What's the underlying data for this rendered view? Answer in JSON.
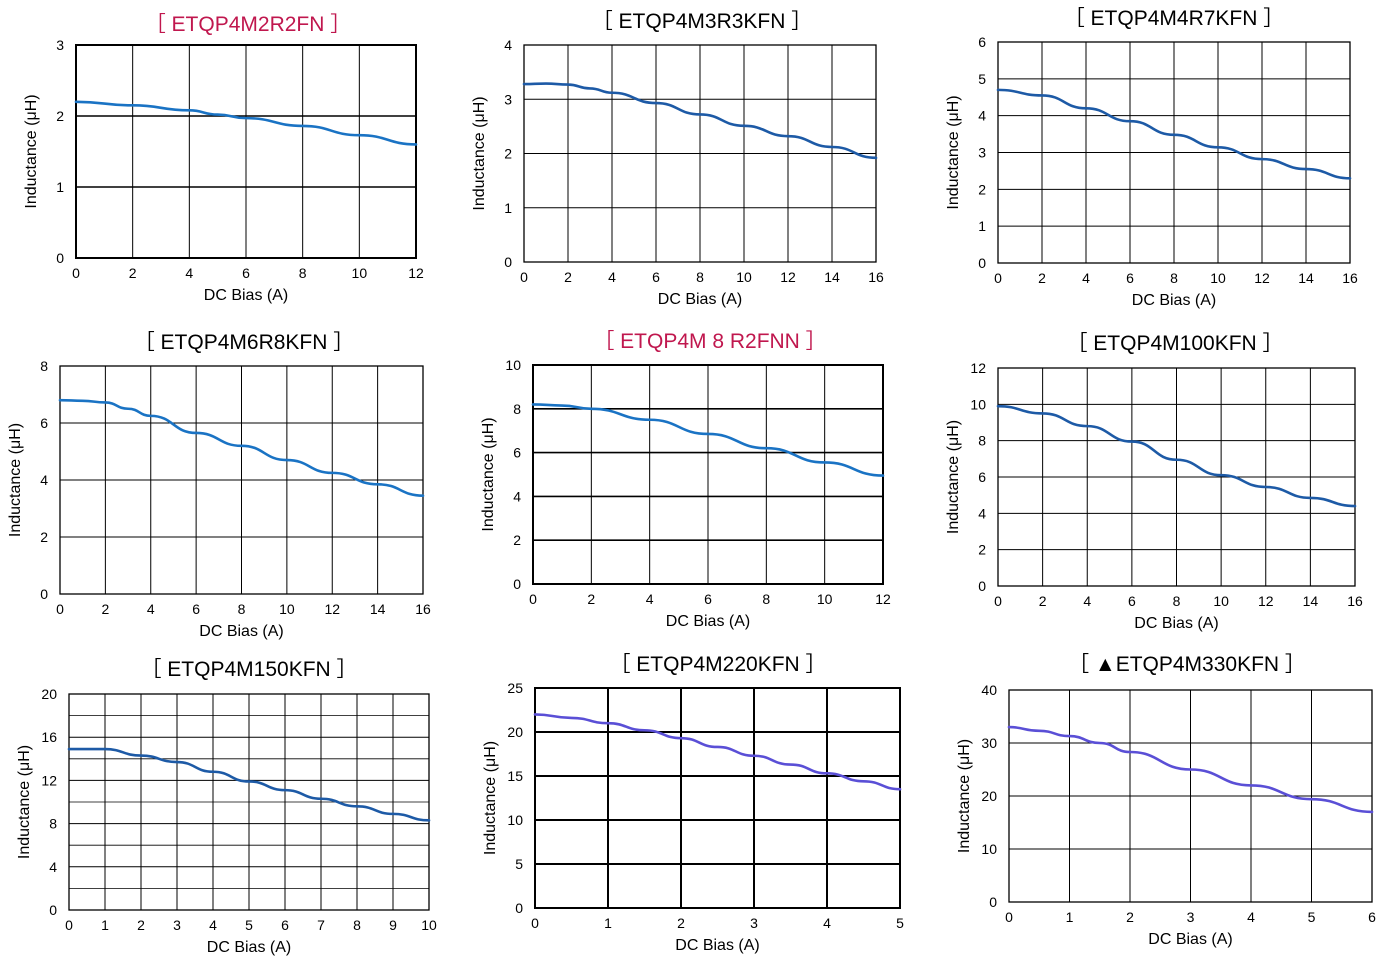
{
  "colors": {
    "title_red": "#c0174e",
    "title_black": "#000000",
    "line_blue": "#1a73c4",
    "line_navy": "#1d5aa6",
    "line_purple": "#5a4fd6"
  },
  "chart_data": [
    {
      "type": "line",
      "title": "［ ETQP4M2R2FN ］",
      "title_color": "title_red",
      "xlabel": "DC Bias (A)",
      "ylabel": "Inductance (μH)",
      "xlim": [
        0,
        12
      ],
      "ylim": [
        0,
        3
      ],
      "xticks": [
        0,
        2,
        4,
        6,
        8,
        10,
        12
      ],
      "yticks": [
        0,
        1,
        2,
        3
      ],
      "grid": "major",
      "line_color": "line_blue",
      "series": [
        {
          "x": [
            0,
            2,
            4,
            5,
            6,
            8,
            10,
            12
          ],
          "values": [
            2.2,
            2.15,
            2.08,
            2.02,
            1.97,
            1.86,
            1.73,
            1.6
          ]
        }
      ]
    },
    {
      "type": "line",
      "title": "［ ETQP4M3R3KFN ］",
      "title_color": "title_black",
      "xlabel": "DC Bias (A)",
      "ylabel": "Inductance (μH)",
      "xlim": [
        0,
        16
      ],
      "ylim": [
        0,
        4
      ],
      "xticks": [
        0,
        2,
        4,
        6,
        8,
        10,
        12,
        14,
        16
      ],
      "yticks": [
        0,
        1,
        2,
        3,
        4
      ],
      "grid": "major",
      "line_color": "line_navy",
      "series": [
        {
          "x": [
            0,
            1,
            2,
            3,
            4,
            6,
            8,
            10,
            12,
            14,
            16
          ],
          "values": [
            3.28,
            3.29,
            3.27,
            3.2,
            3.12,
            2.93,
            2.72,
            2.51,
            2.32,
            2.12,
            1.92
          ]
        }
      ]
    },
    {
      "type": "line",
      "title": "［ ETQP4M4R7KFN ］",
      "title_color": "title_black",
      "xlabel": "DC Bias (A)",
      "ylabel": "Inductance (μH)",
      "xlim": [
        0,
        16
      ],
      "ylim": [
        0,
        6
      ],
      "xticks": [
        0,
        2,
        4,
        6,
        8,
        10,
        12,
        14,
        16
      ],
      "yticks": [
        0,
        1,
        2,
        3,
        4,
        5,
        6
      ],
      "grid": "major",
      "line_color": "line_navy",
      "series": [
        {
          "x": [
            0,
            2,
            4,
            6,
            8,
            10,
            12,
            14,
            16
          ],
          "values": [
            4.7,
            4.55,
            4.2,
            3.85,
            3.48,
            3.14,
            2.82,
            2.55,
            2.3
          ]
        }
      ]
    },
    {
      "type": "line",
      "title": "［ ETQP4M6R8KFN ］",
      "title_color": "title_black",
      "xlabel": "DC Bias (A)",
      "ylabel": "Inductance (μH)",
      "xlim": [
        0,
        16
      ],
      "ylim": [
        0,
        8
      ],
      "xticks": [
        0,
        2,
        4,
        6,
        8,
        10,
        12,
        14,
        16
      ],
      "yticks": [
        0,
        2,
        4,
        6,
        8
      ],
      "grid": "major",
      "line_color": "line_blue",
      "series": [
        {
          "x": [
            0,
            1,
            2,
            3,
            4,
            6,
            8,
            10,
            12,
            14,
            16
          ],
          "values": [
            6.8,
            6.78,
            6.72,
            6.5,
            6.25,
            5.65,
            5.2,
            4.7,
            4.25,
            3.85,
            3.45
          ]
        }
      ]
    },
    {
      "type": "line",
      "title": "［ ETQP4M 8 R2FNN ］",
      "title_color": "title_red",
      "xlabel": "DC Bias (A)",
      "ylabel": "Inductance (μH)",
      "xlim": [
        0,
        12
      ],
      "ylim": [
        0,
        10
      ],
      "xticks": [
        0,
        2,
        4,
        6,
        8,
        10,
        12
      ],
      "yticks": [
        0,
        2,
        4,
        6,
        8,
        10
      ],
      "grid": "major",
      "line_color": "line_blue",
      "series": [
        {
          "x": [
            0,
            1,
            2,
            4,
            6,
            8,
            10,
            12
          ],
          "values": [
            8.2,
            8.15,
            8.0,
            7.5,
            6.85,
            6.2,
            5.55,
            4.95
          ]
        }
      ]
    },
    {
      "type": "line",
      "title": "［ ETQP4M100KFN ］",
      "title_color": "title_black",
      "xlabel": "DC Bias (A)",
      "ylabel": "Inductance (μH)",
      "xlim": [
        0,
        16
      ],
      "ylim": [
        0,
        12
      ],
      "xticks": [
        0,
        2,
        4,
        6,
        8,
        10,
        12,
        14,
        16
      ],
      "yticks": [
        0,
        2,
        4,
        6,
        8,
        10,
        12
      ],
      "grid": "major",
      "line_color": "line_navy",
      "series": [
        {
          "x": [
            0,
            2,
            4,
            6,
            8,
            10,
            12,
            14,
            16
          ],
          "values": [
            9.9,
            9.5,
            8.8,
            7.95,
            6.95,
            6.1,
            5.45,
            4.85,
            4.4
          ]
        }
      ]
    },
    {
      "type": "line",
      "title": "［ ETQP4M150KFN ］",
      "title_color": "title_black",
      "xlabel": "DC Bias (A)",
      "ylabel": "Inductance (μH)",
      "xlim": [
        0,
        10
      ],
      "ylim": [
        0,
        20
      ],
      "xticks": [
        0,
        1,
        2,
        3,
        4,
        5,
        6,
        7,
        8,
        9,
        10
      ],
      "yticks": [
        0,
        4,
        8,
        12,
        16,
        20
      ],
      "grid": "minor-y",
      "line_color": "line_navy",
      "series": [
        {
          "x": [
            0,
            1,
            2,
            3,
            4,
            5,
            6,
            7,
            8,
            9,
            10
          ],
          "values": [
            14.9,
            14.9,
            14.3,
            13.7,
            12.8,
            11.9,
            11.1,
            10.3,
            9.6,
            8.9,
            8.3
          ]
        }
      ]
    },
    {
      "type": "line",
      "title": "［ ETQP4M220KFN ］",
      "title_color": "title_black",
      "xlabel": "DC Bias (A)",
      "ylabel": "Inductance (μH)",
      "xlim": [
        0,
        5
      ],
      "ylim": [
        0,
        25
      ],
      "xticks": [
        0,
        1,
        2,
        3,
        4,
        5
      ],
      "yticks": [
        0,
        5,
        10,
        15,
        20,
        25
      ],
      "grid": "major-thick",
      "line_color": "line_purple",
      "series": [
        {
          "x": [
            0,
            0.5,
            1,
            1.5,
            2,
            2.5,
            3,
            3.5,
            4,
            4.5,
            5
          ],
          "values": [
            22.0,
            21.6,
            21.0,
            20.2,
            19.3,
            18.3,
            17.3,
            16.3,
            15.3,
            14.4,
            13.5
          ]
        }
      ]
    },
    {
      "type": "line",
      "title": "［ ▲ETQP4M330KFN ］",
      "title_color": "title_black",
      "xlabel": "DC Bias (A)",
      "ylabel": "Inductance (μH)",
      "xlim": [
        0,
        6
      ],
      "ylim": [
        0,
        40
      ],
      "xticks": [
        0,
        1,
        2,
        3,
        4,
        5,
        6
      ],
      "yticks": [
        0,
        10,
        20,
        30,
        40
      ],
      "grid": "major",
      "line_color": "line_purple",
      "series": [
        {
          "x": [
            0,
            0.5,
            1,
            1.5,
            2,
            3,
            4,
            5,
            6
          ],
          "values": [
            33.0,
            32.3,
            31.3,
            30.0,
            28.3,
            25.0,
            22.0,
            19.4,
            17.0
          ]
        }
      ]
    }
  ]
}
